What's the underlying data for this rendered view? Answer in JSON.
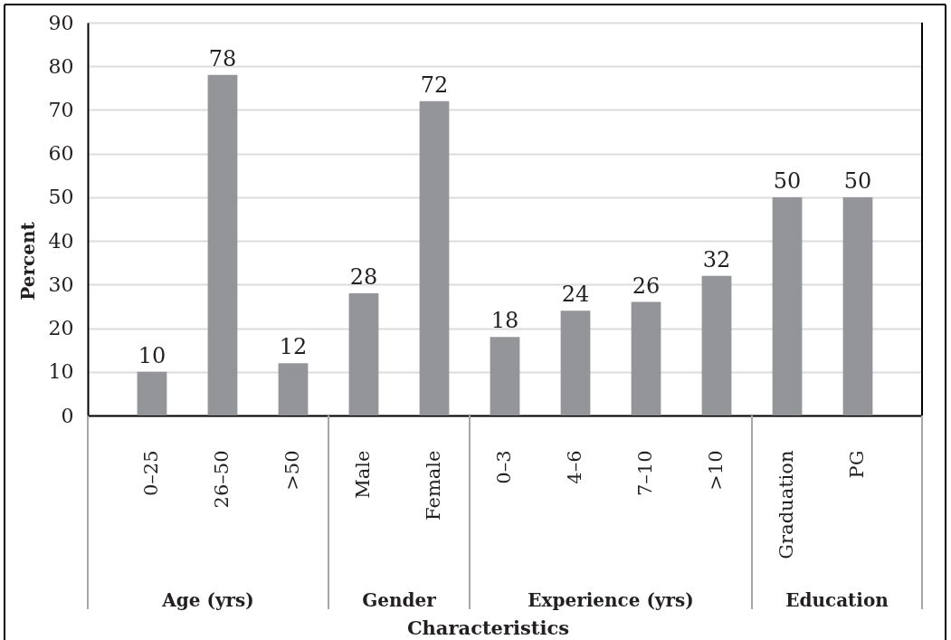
{
  "chart_data": {
    "type": "bar",
    "xlabel": "Characteristics",
    "ylabel": "Percent",
    "categories": [
      "0–25",
      "26–50",
      ">50",
      "Male",
      "Female",
      "0–3",
      "4–6",
      "7–10",
      ">10",
      "Graduation",
      "PG"
    ],
    "values": [
      10,
      78,
      12,
      28,
      72,
      18,
      24,
      26,
      32,
      50,
      50
    ],
    "color": "#939598",
    "ylim": [
      0,
      90
    ],
    "yticks": [
      0,
      10,
      20,
      30,
      40,
      50,
      60,
      70,
      80,
      90
    ],
    "grid": "y",
    "data_labels": true,
    "annotations": [
      "Age (yrs)",
      "Gender",
      "Experience (yrs)",
      "Education"
    ]
  }
}
